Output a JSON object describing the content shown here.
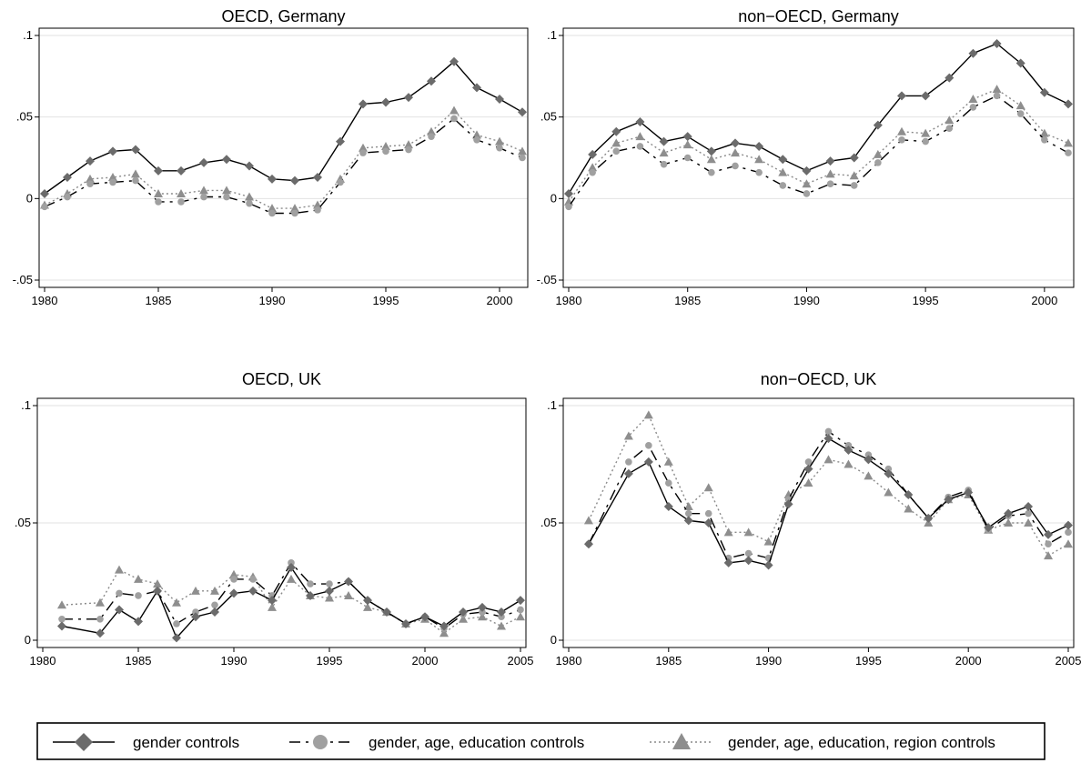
{
  "chart_data": [
    {
      "type": "line",
      "title": "OECD, Germany",
      "xlim": [
        1980,
        2001
      ],
      "ylim": [
        -0.05,
        0.1
      ],
      "xticks": [
        1980,
        1985,
        1990,
        1995,
        2000
      ],
      "xtick_labels": [
        "1980",
        "1985",
        "1990",
        "1995",
        "2000"
      ],
      "yticks": [
        -0.05,
        0,
        0.05,
        0.1
      ],
      "ytick_labels": [
        "-.05",
        "0",
        ".05",
        ".1"
      ],
      "grid": "horizontal",
      "x": [
        1980,
        1981,
        1982,
        1983,
        1984,
        1985,
        1986,
        1987,
        1988,
        1989,
        1990,
        1991,
        1992,
        1993,
        1994,
        1995,
        1996,
        1997,
        1998,
        1999,
        2000,
        2001
      ],
      "series": [
        {
          "name": "gender controls",
          "values": [
            0.003,
            0.013,
            0.023,
            0.029,
            0.03,
            0.017,
            0.017,
            0.022,
            0.024,
            0.02,
            0.012,
            0.011,
            0.013,
            0.035,
            0.058,
            0.059,
            0.062,
            0.072,
            0.084,
            0.068,
            0.061,
            0.053
          ]
        },
        {
          "name": "gender, age, education controls",
          "values": [
            -0.005,
            0.001,
            0.009,
            0.01,
            0.011,
            -0.002,
            -0.002,
            0.001,
            0.001,
            -0.003,
            -0.009,
            -0.009,
            -0.007,
            0.01,
            0.028,
            0.029,
            0.03,
            0.038,
            0.049,
            0.036,
            0.031,
            0.025
          ]
        },
        {
          "name": "gender, age, education, region controls",
          "values": [
            -0.004,
            0.003,
            0.012,
            0.013,
            0.015,
            0.003,
            0.003,
            0.005,
            0.005,
            0.001,
            -0.006,
            -0.006,
            -0.004,
            0.012,
            0.031,
            0.032,
            0.033,
            0.041,
            0.054,
            0.039,
            0.035,
            0.029
          ]
        }
      ]
    },
    {
      "type": "line",
      "title": "non−OECD, Germany",
      "xlim": [
        1980,
        2001
      ],
      "ylim": [
        -0.05,
        0.1
      ],
      "xticks": [
        1980,
        1985,
        1990,
        1995,
        2000
      ],
      "xtick_labels": [
        "1980",
        "1985",
        "1990",
        "1995",
        "2000"
      ],
      "yticks": [
        -0.05,
        0,
        0.05,
        0.1
      ],
      "ytick_labels": [
        "-.05",
        "0",
        ".05",
        ".1"
      ],
      "grid": "horizontal",
      "x": [
        1980,
        1981,
        1982,
        1983,
        1984,
        1985,
        1986,
        1987,
        1988,
        1989,
        1990,
        1991,
        1992,
        1993,
        1994,
        1995,
        1996,
        1997,
        1998,
        1999,
        2000,
        2001
      ],
      "series": [
        {
          "name": "gender controls",
          "values": [
            0.003,
            0.027,
            0.041,
            0.047,
            0.035,
            0.038,
            0.029,
            0.034,
            0.032,
            0.024,
            0.017,
            0.023,
            0.025,
            0.045,
            0.063,
            0.063,
            0.074,
            0.089,
            0.095,
            0.083,
            0.065,
            0.058
          ]
        },
        {
          "name": "gender, age, education controls",
          "values": [
            -0.005,
            0.016,
            0.029,
            0.032,
            0.021,
            0.025,
            0.016,
            0.02,
            0.016,
            0.008,
            0.003,
            0.009,
            0.008,
            0.022,
            0.036,
            0.035,
            0.043,
            0.056,
            0.063,
            0.052,
            0.036,
            0.028
          ]
        },
        {
          "name": "gender, age, education, region controls",
          "values": [
            -0.002,
            0.019,
            0.034,
            0.038,
            0.028,
            0.033,
            0.024,
            0.028,
            0.024,
            0.016,
            0.009,
            0.015,
            0.014,
            0.027,
            0.041,
            0.04,
            0.048,
            0.061,
            0.067,
            0.057,
            0.04,
            0.034
          ]
        }
      ]
    },
    {
      "type": "line",
      "title": "OECD, UK",
      "xlim": [
        1980,
        2005
      ],
      "ylim": [
        0,
        0.1
      ],
      "xticks": [
        1980,
        1985,
        1990,
        1995,
        2000,
        2005
      ],
      "xtick_labels": [
        "1980",
        "1985",
        "1990",
        "1995",
        "2000",
        "2005"
      ],
      "yticks": [
        0,
        0.05,
        0.1
      ],
      "ytick_labels": [
        "0",
        ".05",
        ".1"
      ],
      "grid": "horizontal",
      "x": [
        1981,
        1983,
        1984,
        1985,
        1986,
        1987,
        1988,
        1989,
        1990,
        1991,
        1992,
        1993,
        1994,
        1995,
        1996,
        1997,
        1998,
        1999,
        2000,
        2001,
        2002,
        2003,
        2004,
        2005
      ],
      "series": [
        {
          "name": "gender controls",
          "values": [
            0.006,
            0.003,
            0.013,
            0.008,
            0.021,
            0.001,
            0.01,
            0.012,
            0.02,
            0.021,
            0.017,
            0.031,
            0.019,
            0.021,
            0.025,
            0.017,
            0.012,
            0.007,
            0.01,
            0.006,
            0.012,
            0.014,
            0.012,
            0.017
          ]
        },
        {
          "name": "gender, age, education controls",
          "values": [
            0.009,
            0.009,
            0.02,
            0.019,
            0.021,
            0.007,
            0.012,
            0.015,
            0.026,
            0.026,
            0.019,
            0.033,
            0.024,
            0.024,
            0.025,
            0.017,
            0.012,
            0.007,
            0.01,
            0.005,
            0.011,
            0.012,
            0.01,
            0.013
          ]
        },
        {
          "name": "gender, age, education, region controls",
          "values": [
            0.015,
            0.016,
            0.03,
            0.026,
            0.024,
            0.016,
            0.021,
            0.021,
            0.028,
            0.027,
            0.014,
            0.026,
            0.019,
            0.018,
            0.019,
            0.014,
            0.012,
            0.007,
            0.009,
            0.003,
            0.009,
            0.01,
            0.006,
            0.01
          ]
        }
      ]
    },
    {
      "type": "line",
      "title": "non−OECD, UK",
      "xlim": [
        1980,
        2005
      ],
      "ylim": [
        0,
        0.1
      ],
      "xticks": [
        1980,
        1985,
        1990,
        1995,
        2000,
        2005
      ],
      "xtick_labels": [
        "1980",
        "1985",
        "1990",
        "1995",
        "2000",
        "2005"
      ],
      "yticks": [
        0,
        0.05,
        0.1
      ],
      "ytick_labels": [
        "0",
        ".05",
        ".1"
      ],
      "grid": "horizontal",
      "x": [
        1981,
        1983,
        1984,
        1985,
        1986,
        1987,
        1988,
        1989,
        1990,
        1991,
        1992,
        1993,
        1994,
        1995,
        1996,
        1997,
        1998,
        1999,
        2000,
        2001,
        2002,
        2003,
        2004,
        2005
      ],
      "series": [
        {
          "name": "gender controls",
          "values": [
            0.041,
            0.071,
            0.076,
            0.057,
            0.051,
            0.05,
            0.033,
            0.034,
            0.032,
            0.058,
            0.073,
            0.086,
            0.081,
            0.077,
            0.071,
            0.062,
            0.052,
            0.06,
            0.063,
            0.048,
            0.054,
            0.057,
            0.045,
            0.049
          ]
        },
        {
          "name": "gender, age, education controls",
          "values": [
            0.041,
            0.076,
            0.083,
            0.067,
            0.054,
            0.054,
            0.035,
            0.037,
            0.035,
            0.06,
            0.076,
            0.089,
            0.083,
            0.079,
            0.073,
            0.062,
            0.052,
            0.061,
            0.064,
            0.047,
            0.053,
            0.054,
            0.041,
            0.046
          ]
        },
        {
          "name": "gender, age, education, region controls",
          "values": [
            0.051,
            0.087,
            0.096,
            0.076,
            0.057,
            0.065,
            0.046,
            0.046,
            0.042,
            0.062,
            0.067,
            0.077,
            0.075,
            0.07,
            0.063,
            0.056,
            0.05,
            0.06,
            0.062,
            0.047,
            0.05,
            0.05,
            0.036,
            0.041
          ]
        }
      ]
    }
  ],
  "legend": {
    "placement": "bottom",
    "entries": [
      "gender controls",
      "gender, age, education controls",
      "gender, age, education, region controls"
    ]
  },
  "colors": {
    "series_1": "#6b6b6b",
    "series_2": "#a0a0a0",
    "series_3": "#8e8e8e",
    "line_1": "#000000",
    "line_2": "#000000",
    "line_3": "#8a8a8a",
    "grid": "#e2e2e2"
  }
}
